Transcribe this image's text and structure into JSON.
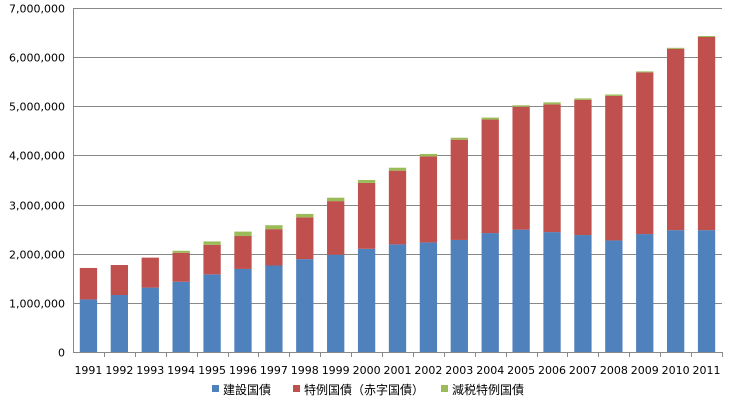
{
  "chart_data": {
    "type": "bar",
    "stacked": true,
    "title": "",
    "xlabel": "",
    "ylabel": "",
    "categories": [
      "1991",
      "1992",
      "1993",
      "1994",
      "1995",
      "1996",
      "1997",
      "1998",
      "1999",
      "2000",
      "2001",
      "2002",
      "2003",
      "2004",
      "2005",
      "2006",
      "2007",
      "2008",
      "2009",
      "2010",
      "2011"
    ],
    "ylim": [
      0,
      7000000
    ],
    "yticks": [
      0,
      1000000,
      2000000,
      3000000,
      4000000,
      5000000,
      6000000,
      7000000
    ],
    "ytick_labels": [
      "0",
      "1,000,000",
      "2,000,000",
      "3,000,000",
      "4,000,000",
      "5,000,000",
      "6,000,000",
      "7,000,000"
    ],
    "grid": true,
    "legend_position": "bottom",
    "series": [
      {
        "name": "建設国債",
        "color": "#4f81bd",
        "values": [
          1070000,
          1160000,
          1310000,
          1430000,
          1580000,
          1690000,
          1760000,
          1890000,
          1980000,
          2100000,
          2190000,
          2230000,
          2280000,
          2420000,
          2490000,
          2440000,
          2380000,
          2270000,
          2400000,
          2480000,
          2480000
        ]
      },
      {
        "name": "特例国債（赤字国債）",
        "color": "#c0504d",
        "values": [
          640000,
          610000,
          610000,
          590000,
          600000,
          670000,
          740000,
          850000,
          1090000,
          1340000,
          1500000,
          1750000,
          2040000,
          2310000,
          2500000,
          2600000,
          2750000,
          2940000,
          3290000,
          3690000,
          3930000
        ]
      },
      {
        "name": "減税特例国債",
        "color": "#9bbb59",
        "values": [
          0,
          0,
          0,
          40000,
          70000,
          90000,
          80000,
          70000,
          70000,
          60000,
          60000,
          50000,
          40000,
          40000,
          30000,
          40000,
          30000,
          30000,
          20000,
          20000,
          20000
        ]
      }
    ]
  }
}
